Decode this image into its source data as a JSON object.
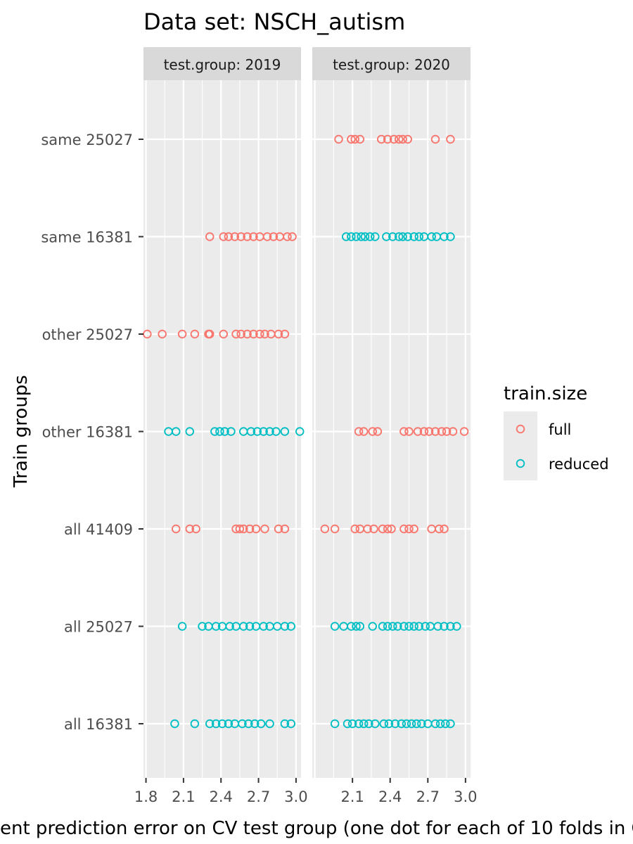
{
  "chart_data": {
    "type": "scatter",
    "title": "Data set: NSCH_autism",
    "xlabel": "ent prediction error on CV test group (one dot for each of 10 folds in C",
    "ylabel": "Train groups",
    "xlim": [
      1.78,
      3.04
    ],
    "xticks": [
      1.8,
      2.1,
      2.4,
      2.7,
      3.0
    ],
    "xtick_labels": [
      "1.8",
      "2.1",
      "2.4",
      "2.7",
      "3.0"
    ],
    "categories": [
      "same 25027",
      "same 16381",
      "other 25027",
      "other 16381",
      "all 41409",
      "all 25027",
      "all 16381"
    ],
    "grid": true,
    "legend": {
      "title": "train.size",
      "position": "right",
      "entries": [
        {
          "name": "full",
          "color": "#F8766D"
        },
        {
          "name": "reduced",
          "color": "#00BFC4"
        }
      ]
    },
    "panels": [
      {
        "label": "test.group: 2019",
        "show_ticks": [
          true,
          true,
          true,
          true,
          true
        ],
        "series": [
          {
            "category": "same 16381",
            "train_size": "full",
            "x": [
              2.31,
              2.42,
              2.46,
              2.51,
              2.56,
              2.61,
              2.66,
              2.71,
              2.77,
              2.82,
              2.87,
              2.93,
              2.97
            ]
          },
          {
            "category": "other 25027",
            "train_size": "full",
            "x": [
              1.81,
              1.93,
              2.09,
              2.19,
              2.3,
              2.31,
              2.42,
              2.52,
              2.56,
              2.61,
              2.66,
              2.71,
              2.75,
              2.8,
              2.86,
              2.91
            ]
          },
          {
            "category": "other 16381",
            "train_size": "reduced",
            "x": [
              1.98,
              2.04,
              2.15,
              2.35,
              2.39,
              2.43,
              2.48,
              2.58,
              2.64,
              2.69,
              2.74,
              2.79,
              2.84,
              2.91,
              3.03
            ]
          },
          {
            "category": "all 41409",
            "train_size": "full",
            "x": [
              2.04,
              2.15,
              2.2,
              2.52,
              2.55,
              2.58,
              2.63,
              2.68,
              2.75,
              2.86,
              2.91
            ]
          },
          {
            "category": "all 25027",
            "train_size": "reduced",
            "x": [
              2.09,
              2.25,
              2.3,
              2.36,
              2.41,
              2.47,
              2.52,
              2.58,
              2.63,
              2.68,
              2.74,
              2.79,
              2.85,
              2.91,
              2.96
            ]
          },
          {
            "category": "all 16381",
            "train_size": "reduced",
            "x": [
              2.03,
              2.19,
              2.31,
              2.36,
              2.41,
              2.46,
              2.51,
              2.57,
              2.62,
              2.67,
              2.72,
              2.79,
              2.91,
              2.96
            ]
          }
        ]
      },
      {
        "label": "test.group: 2020",
        "show_ticks": [
          false,
          true,
          true,
          true,
          true
        ],
        "series": [
          {
            "category": "same 25027",
            "train_size": "full",
            "x": [
              1.99,
              2.09,
              2.12,
              2.16,
              2.33,
              2.38,
              2.43,
              2.47,
              2.5,
              2.54,
              2.76,
              2.88
            ]
          },
          {
            "category": "same 16381",
            "train_size": "reduced",
            "x": [
              2.05,
              2.09,
              2.13,
              2.17,
              2.2,
              2.24,
              2.28,
              2.37,
              2.42,
              2.47,
              2.5,
              2.54,
              2.59,
              2.63,
              2.67,
              2.73,
              2.77,
              2.83,
              2.88
            ]
          },
          {
            "category": "other 16381",
            "train_size": "full",
            "x": [
              2.15,
              2.19,
              2.26,
              2.3,
              2.51,
              2.55,
              2.62,
              2.67,
              2.71,
              2.76,
              2.81,
              2.85,
              2.9,
              2.99
            ]
          },
          {
            "category": "all 41409",
            "train_size": "full",
            "x": [
              1.88,
              1.96,
              2.12,
              2.16,
              2.22,
              2.27,
              2.34,
              2.38,
              2.41,
              2.51,
              2.55,
              2.59,
              2.73,
              2.79,
              2.83
            ]
          },
          {
            "category": "all 25027",
            "train_size": "reduced",
            "x": [
              1.96,
              2.03,
              2.09,
              2.13,
              2.16,
              2.26,
              2.34,
              2.38,
              2.42,
              2.46,
              2.51,
              2.55,
              2.59,
              2.63,
              2.68,
              2.72,
              2.78,
              2.83,
              2.88,
              2.93
            ]
          },
          {
            "category": "all 16381",
            "train_size": "reduced",
            "x": [
              1.96,
              2.06,
              2.1,
              2.15,
              2.19,
              2.23,
              2.28,
              2.35,
              2.39,
              2.44,
              2.49,
              2.53,
              2.57,
              2.61,
              2.65,
              2.7,
              2.76,
              2.8,
              2.84,
              2.88
            ]
          }
        ]
      }
    ]
  }
}
